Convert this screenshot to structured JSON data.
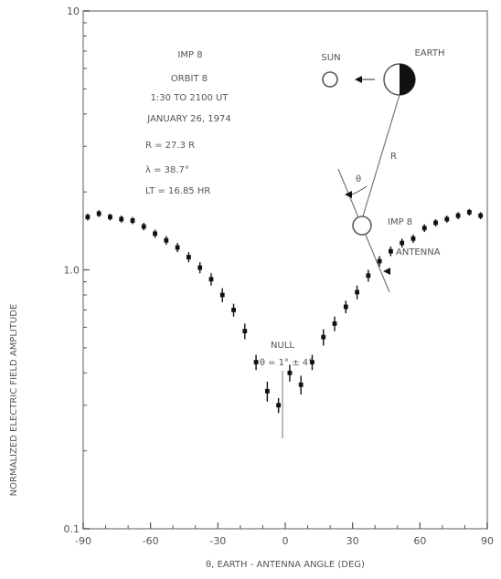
{
  "colors": {
    "ink": "#555555",
    "marker": "#111111",
    "frame": "#999999",
    "background": "#ffffff"
  },
  "info": {
    "lines": [
      "IMP 8",
      "ORBIT 8",
      "1:30 TO 2100 UT",
      "JANUARY 26, 1974"
    ],
    "params": [
      "R = 27.3 R",
      "λ = 38.7°",
      "LT = 16.85 HR"
    ]
  },
  "diagram": {
    "sun_label": "SUN",
    "earth_label": "EARTH",
    "r_label": "R",
    "theta_label": "θ",
    "spacecraft_label": "IMP 8",
    "antenna_label": "ANTENNA"
  },
  "annotation": {
    "line1": "NULL",
    "line2": "θ = 1° ± 4°"
  },
  "chart_data": {
    "type": "scatter",
    "title": "",
    "xlabel": "θ, EARTH - ANTENNA ANGLE (DEG)",
    "ylabel": "NORMALIZED ELECTRIC FIELD AMPLITUDE",
    "xlim": [
      -90,
      90
    ],
    "ylim": [
      0.1,
      10
    ],
    "yscale": "log",
    "x_ticks": [
      -90,
      -60,
      -30,
      0,
      30,
      60,
      90
    ],
    "x_tick_labels": [
      "-90",
      "-60",
      "-30",
      "0",
      "30",
      "60",
      "90"
    ],
    "y_ticks": [
      0.1,
      1.0,
      10
    ],
    "y_tick_labels": [
      "0.1",
      "1.0",
      "10"
    ],
    "grid": false,
    "series": [
      {
        "x": [
          -88,
          -83,
          -78,
          -73,
          -68,
          -63,
          -58,
          -53,
          -48,
          -43,
          -38,
          -33,
          -28,
          -23,
          -18,
          -13,
          -8,
          -3,
          2,
          7,
          12,
          17,
          22,
          27,
          32,
          37,
          42,
          47,
          52,
          57,
          62,
          67,
          72,
          77,
          82,
          87
        ],
        "y": [
          1.6,
          1.65,
          1.6,
          1.57,
          1.55,
          1.47,
          1.38,
          1.3,
          1.22,
          1.12,
          1.02,
          0.92,
          0.8,
          0.7,
          0.58,
          0.44,
          0.34,
          0.3,
          0.4,
          0.36,
          0.44,
          0.55,
          0.62,
          0.72,
          0.82,
          0.95,
          1.08,
          1.18,
          1.27,
          1.32,
          1.45,
          1.52,
          1.57,
          1.62,
          1.67,
          1.62
        ],
        "err": [
          0.05,
          0.05,
          0.05,
          0.05,
          0.05,
          0.05,
          0.05,
          0.05,
          0.05,
          0.05,
          0.05,
          0.05,
          0.05,
          0.04,
          0.04,
          0.03,
          0.03,
          0.02,
          0.03,
          0.03,
          0.03,
          0.04,
          0.04,
          0.04,
          0.05,
          0.05,
          0.05,
          0.05,
          0.05,
          0.05,
          0.05,
          0.05,
          0.05,
          0.05,
          0.05,
          0.05
        ]
      }
    ]
  }
}
